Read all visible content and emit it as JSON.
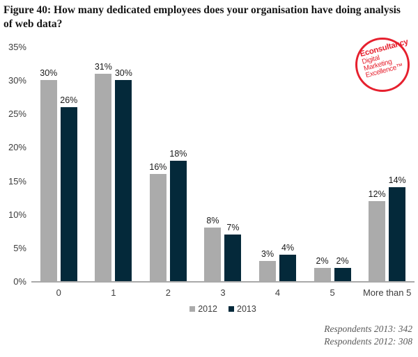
{
  "page": {
    "title": "Figure 40: How many dedicated employees does your organisation have doing analysis of web data?"
  },
  "logo": {
    "brand": "Econsultancy",
    "tagline_lines": [
      "Digital",
      "Marketing",
      "Excellence™"
    ],
    "color": "#e6202e"
  },
  "chart_data": {
    "type": "bar",
    "title": "Figure 40: How many dedicated employees does your organisation have doing analysis of web data?",
    "categories": [
      "0",
      "1",
      "2",
      "3",
      "4",
      "5",
      "More than 5"
    ],
    "series": [
      {
        "name": "2012",
        "color": "#ababab",
        "values": [
          30,
          31,
          16,
          8,
          3,
          2,
          12
        ]
      },
      {
        "name": "2013",
        "color": "#04293a",
        "values": [
          26,
          30,
          18,
          7,
          4,
          2,
          14
        ]
      }
    ],
    "value_suffix": "%",
    "xlabel": "",
    "ylabel": "",
    "ylim": [
      0,
      35
    ],
    "yticks": [
      0,
      5,
      10,
      15,
      20,
      25,
      30,
      35
    ],
    "grid": false,
    "legend_position": "bottom"
  },
  "footer": {
    "respondents_2013": "Respondents 2013: 342",
    "respondents_2012": "Respondents 2012: 308"
  }
}
